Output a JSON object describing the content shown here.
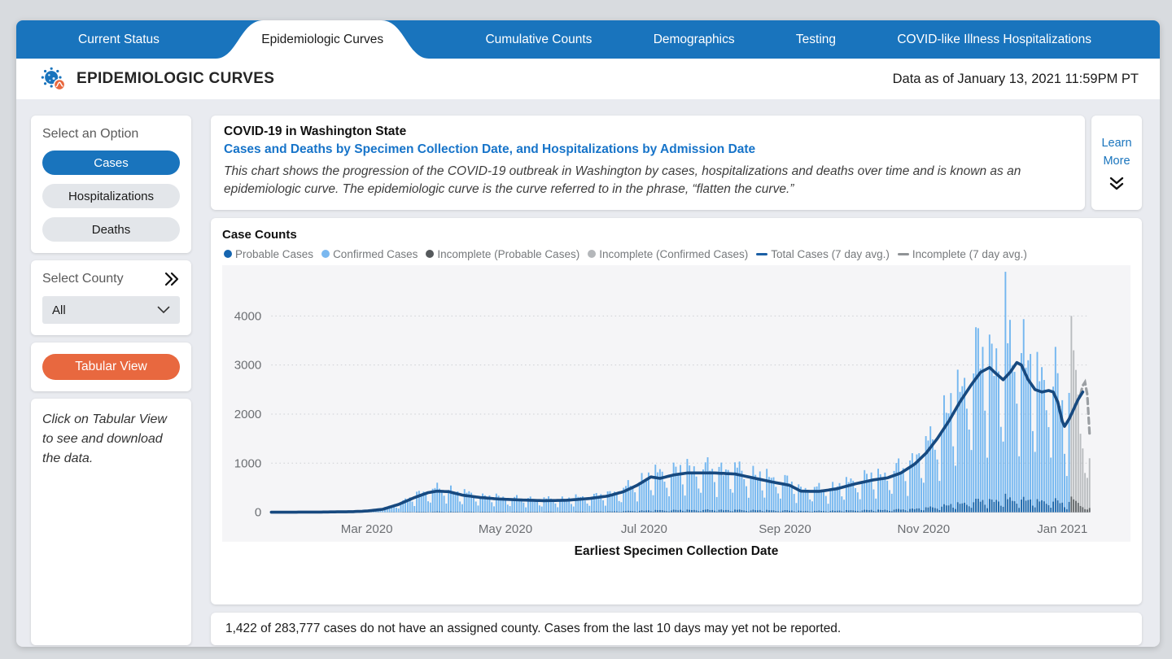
{
  "tab_bar": {
    "tabs": [
      {
        "label": "Current Status"
      },
      {
        "label": "Epidemiologic Curves"
      },
      {
        "label": "Cumulative Counts"
      },
      {
        "label": "Demographics"
      },
      {
        "label": "Testing"
      },
      {
        "label": "COVID-like Illness Hospitalizations"
      }
    ],
    "active": "Epidemiologic Curves"
  },
  "title_bar": {
    "title": "EPIDEMIOLOGIC CURVES",
    "data_as_of": "Data as of January 13, 2021 11:59PM PT",
    "app_icon": "coronavirus-with-epi-curve-badge"
  },
  "sidebar": {
    "option_label": "Select an Option",
    "options": [
      {
        "label": "Cases",
        "active": true
      },
      {
        "label": "Hospitalizations",
        "active": false
      },
      {
        "label": "Deaths",
        "active": false
      }
    ],
    "county_label": "Select County",
    "county_expand_icon": "double-chevron-right",
    "county_value": "All",
    "county_dropdown_icon": "chevron-down",
    "tabular_view_label": "Tabular View",
    "hint": "Click on Tabular View to see and download the data."
  },
  "info_panel": {
    "title": "COVID-19 in Washington State",
    "subtitle": "Cases and Deaths by Specimen Collection Date, and Hospitalizations by Admission Date",
    "description": "This chart shows the progression of the COVID-19 outbreak in Washington by cases, hospitalizations and deaths over time and is known as an epidemiologic curve. The epidemiologic curve is the curve referred to in the phrase, “flatten the curve.”",
    "learn_more": "Learn More",
    "learn_more_icon": "double-chevron-down"
  },
  "footer_note": "1,422 of 283,777 cases do not have an assigned county. Cases from the last 10 days may yet not be reported.",
  "brand": {
    "blue": "#1974bd",
    "orange": "#e8683f",
    "page_bg": "#d8dbdf",
    "content_bg": "#e9ebf0"
  },
  "chart_data": {
    "type": "bar+line epidemic curve (stacked daily bars with 7-day average lines)",
    "title": "Case Counts",
    "xlabel": "Earliest Specimen Collection Date",
    "ylabel": "",
    "x_start": "2020-01-19",
    "x_end": "2021-01-13",
    "x_tick_dates": [
      "2020-03-01",
      "2020-05-01",
      "2020-07-01",
      "2020-09-01",
      "2020-11-01",
      "2021-01-01"
    ],
    "x_tick_labels": [
      "Mar 2020",
      "May 2020",
      "Jul 2020",
      "Sep 2020",
      "Nov 2020",
      "Jan 2021"
    ],
    "y_ticks": [
      0,
      1000,
      2000,
      3000,
      4000
    ],
    "ylim": [
      0,
      5000
    ],
    "grid": "dotted horizontal",
    "legend_position": "top",
    "legend": [
      {
        "label": "Probable Cases",
        "color": "#1565b0",
        "marker": "dot"
      },
      {
        "label": "Confirmed Cases",
        "color": "#7ab8f0",
        "marker": "dot"
      },
      {
        "label": "Incomplete (Probable Cases)",
        "color": "#55595c",
        "marker": "dot"
      },
      {
        "label": "Incomplete (Confirmed Cases)",
        "color": "#b4b7ba",
        "marker": "dot"
      },
      {
        "label": "Total Cases (7 day avg.)",
        "color": "#1b5fa5",
        "marker": "line"
      },
      {
        "label": "Incomplete (7 day avg.)",
        "color": "#8f9396",
        "marker": "line"
      }
    ],
    "colors": {
      "confirmed": "#74b7f0",
      "probable": "#1766ad",
      "incomplete_confirmed": "#b9bcbf",
      "incomplete_probable": "#5e6366",
      "total_line": "#17497f",
      "incomplete_line": "#9b9fa3",
      "plot_bg": "#f5f5f7",
      "grid": "#cdd0d4",
      "axis_text": "#6b6e72"
    },
    "total_avg_anchors": [
      [
        "2020-01-19",
        1
      ],
      [
        "2020-02-10",
        4
      ],
      [
        "2020-02-24",
        12
      ],
      [
        "2020-03-01",
        25
      ],
      [
        "2020-03-08",
        60
      ],
      [
        "2020-03-15",
        160
      ],
      [
        "2020-03-22",
        300
      ],
      [
        "2020-03-28",
        400
      ],
      [
        "2020-04-01",
        430
      ],
      [
        "2020-04-06",
        420
      ],
      [
        "2020-04-12",
        350
      ],
      [
        "2020-04-20",
        300
      ],
      [
        "2020-04-28",
        270
      ],
      [
        "2020-05-08",
        250
      ],
      [
        "2020-05-18",
        235
      ],
      [
        "2020-05-28",
        245
      ],
      [
        "2020-06-07",
        280
      ],
      [
        "2020-06-15",
        330
      ],
      [
        "2020-06-22",
        420
      ],
      [
        "2020-06-28",
        550
      ],
      [
        "2020-07-04",
        720
      ],
      [
        "2020-07-08",
        690
      ],
      [
        "2020-07-14",
        760
      ],
      [
        "2020-07-20",
        800
      ],
      [
        "2020-08-01",
        800
      ],
      [
        "2020-08-10",
        780
      ],
      [
        "2020-08-18",
        700
      ],
      [
        "2020-08-26",
        620
      ],
      [
        "2020-09-03",
        550
      ],
      [
        "2020-09-08",
        430
      ],
      [
        "2020-09-16",
        425
      ],
      [
        "2020-09-24",
        480
      ],
      [
        "2020-10-02",
        580
      ],
      [
        "2020-10-10",
        660
      ],
      [
        "2020-10-16",
        700
      ],
      [
        "2020-10-22",
        800
      ],
      [
        "2020-10-28",
        980
      ],
      [
        "2020-11-02",
        1200
      ],
      [
        "2020-11-07",
        1500
      ],
      [
        "2020-11-12",
        1850
      ],
      [
        "2020-11-17",
        2250
      ],
      [
        "2020-11-22",
        2600
      ],
      [
        "2020-11-26",
        2850
      ],
      [
        "2020-11-30",
        2950
      ],
      [
        "2020-12-03",
        2820
      ],
      [
        "2020-12-06",
        2700
      ],
      [
        "2020-12-09",
        2850
      ],
      [
        "2020-12-12",
        3050
      ],
      [
        "2020-12-14",
        3000
      ],
      [
        "2020-12-17",
        2700
      ],
      [
        "2020-12-20",
        2500
      ],
      [
        "2020-12-23",
        2450
      ],
      [
        "2020-12-26",
        2480
      ],
      [
        "2020-12-28",
        2450
      ],
      [
        "2020-12-30",
        2250
      ],
      [
        "2021-01-01",
        1850
      ],
      [
        "2021-01-02",
        1750
      ],
      [
        "2021-01-04",
        1900
      ],
      [
        "2021-01-06",
        2100
      ],
      [
        "2021-01-08",
        2300
      ],
      [
        "2021-01-10",
        2450
      ]
    ],
    "incomplete_avg_anchors": [
      [
        "2021-01-09",
        2400
      ],
      [
        "2021-01-10",
        2580
      ],
      [
        "2021-01-11",
        2650
      ],
      [
        "2021-01-12",
        2400
      ],
      [
        "2021-01-13",
        1600
      ]
    ],
    "probable_share_anchors": [
      [
        "2020-01-19",
        0.0
      ],
      [
        "2020-04-01",
        0.03
      ],
      [
        "2020-07-01",
        0.05
      ],
      [
        "2020-10-01",
        0.06
      ],
      [
        "2020-11-15",
        0.07
      ],
      [
        "2020-12-15",
        0.08
      ],
      [
        "2021-01-13",
        0.09
      ]
    ],
    "weekday_factors_sun_first": [
      0.45,
      1.18,
      1.25,
      1.18,
      1.1,
      1.05,
      0.68
    ],
    "outliers": [
      {
        "date": "2020-12-07",
        "total": 4900
      }
    ],
    "incomplete_bars": {
      "start": "2021-01-05",
      "totals": [
        4000,
        3300,
        2900,
        2400,
        1600,
        1300,
        800,
        700,
        1100
      ],
      "probable_share": 0.08
    }
  }
}
